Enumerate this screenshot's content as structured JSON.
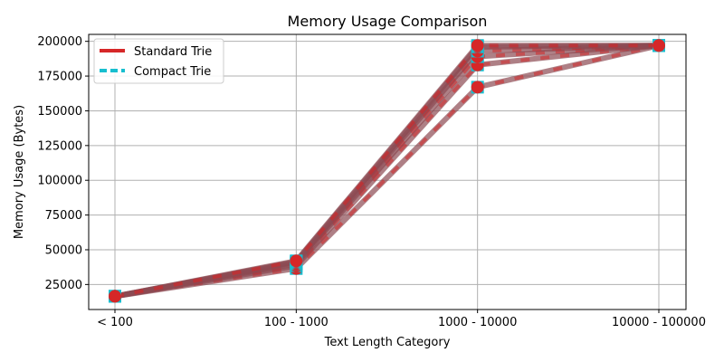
{
  "chart_data": {
    "type": "line",
    "title": "Memory Usage Comparison",
    "xlabel": "Text Length Category",
    "ylabel": "Memory Usage (Bytes)",
    "categories": [
      "< 100",
      "100 - 1000",
      "1000 - 10000",
      "10000 - 100000"
    ],
    "ylim": [
      7000,
      205000
    ],
    "yticks": [
      25000,
      50000,
      75000,
      100000,
      125000,
      150000,
      175000,
      200000
    ],
    "ytick_labels": [
      "25000",
      "50000",
      "75000",
      "100000",
      "125000",
      "150000",
      "175000",
      "200000"
    ],
    "grid": true,
    "legend_position": "top-left",
    "legend": [
      "Standard Trie",
      "Compact Trie"
    ],
    "colors": {
      "standard": "#d62728",
      "compact": "#17becf",
      "overlay": "#8c4a52"
    },
    "series": [
      {
        "values": [
          16500,
          36500,
          167000,
          197000
        ]
      },
      {
        "values": [
          16500,
          38500,
          183000,
          197000
        ]
      },
      {
        "values": [
          16500,
          40000,
          189000,
          197000
        ]
      },
      {
        "values": [
          16500,
          41000,
          193000,
          197000
        ]
      },
      {
        "values": [
          16500,
          41500,
          196000,
          197000
        ]
      },
      {
        "values": [
          16500,
          42000,
          197000,
          197000
        ]
      }
    ]
  }
}
